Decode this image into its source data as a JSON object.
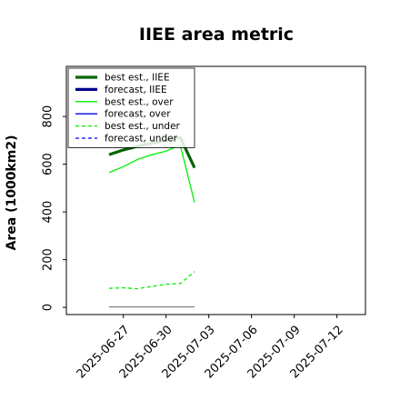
{
  "chart_data": {
    "type": "line",
    "title": "IIEE area metric",
    "ylabel": "Area (1000km2)",
    "xlabel": "",
    "ylim": [
      -30,
      1010
    ],
    "xlim": [
      "2025-06-23",
      "2025-07-14"
    ],
    "y_ticks": [
      0,
      200,
      400,
      600,
      800
    ],
    "x_ticks": [
      "2025-06-27",
      "2025-06-30",
      "2025-07-03",
      "2025-07-06",
      "2025-07-09",
      "2025-07-12"
    ],
    "highlighted_tick": "2025-07-03",
    "highlight_color": "#228b22",
    "legend_position": "upper left",
    "series": [
      {
        "name": "best est., IIEE",
        "color": "#006400",
        "style": "solid",
        "width": 3.2,
        "points": [
          [
            "2025-06-26",
            640
          ],
          [
            "2025-06-27",
            660
          ],
          [
            "2025-06-28",
            675
          ],
          [
            "2025-06-29",
            688
          ],
          [
            "2025-06-30",
            700
          ],
          [
            "2025-07-01",
            712
          ],
          [
            "2025-07-02",
            585
          ]
        ]
      },
      {
        "name": "forecast, IIEE",
        "color": "#00008b",
        "style": "solid",
        "width": 3.2,
        "points": []
      },
      {
        "name": "best est., over",
        "color": "#00ee00",
        "style": "solid",
        "width": 1.3,
        "points": [
          [
            "2025-06-26",
            565
          ],
          [
            "2025-06-27",
            590
          ],
          [
            "2025-06-28",
            620
          ],
          [
            "2025-06-29",
            640
          ],
          [
            "2025-06-30",
            655
          ],
          [
            "2025-07-01",
            680
          ],
          [
            "2025-07-02",
            440
          ]
        ]
      },
      {
        "name": "forecast, over",
        "color": "#0000ee",
        "style": "solid",
        "width": 1.3,
        "points": []
      },
      {
        "name": "best est., under",
        "color": "#00ee00",
        "style": "dashed",
        "width": 1.3,
        "points": [
          [
            "2025-06-26",
            80
          ],
          [
            "2025-06-27",
            82
          ],
          [
            "2025-06-28",
            78
          ],
          [
            "2025-06-29",
            88
          ],
          [
            "2025-06-30",
            97
          ],
          [
            "2025-07-01",
            100
          ],
          [
            "2025-07-02",
            150
          ]
        ]
      },
      {
        "name": "forecast, under",
        "color": "#0000ee",
        "style": "dashed",
        "width": 1.3,
        "points": []
      },
      {
        "name": "",
        "legend": false,
        "color": "#808080",
        "style": "solid",
        "width": 1.3,
        "points": [
          [
            "2025-06-26",
            2
          ],
          [
            "2025-07-02",
            2
          ]
        ]
      }
    ]
  }
}
